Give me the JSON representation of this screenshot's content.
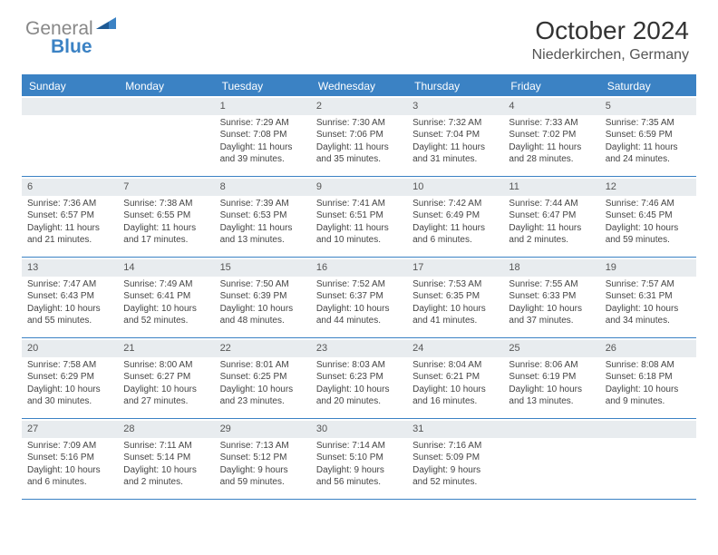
{
  "logo": {
    "part1": "General",
    "part2": "Blue",
    "part1_color": "#888888",
    "part2_color": "#3b82c4"
  },
  "header": {
    "title": "October 2024",
    "location": "Niederkirchen, Germany"
  },
  "colors": {
    "accent": "#3b82c4",
    "header_bg": "#3b82c4",
    "header_text": "#ffffff",
    "daynum_bg": "#e8ecef",
    "text": "#333333"
  },
  "day_names": [
    "Sunday",
    "Monday",
    "Tuesday",
    "Wednesday",
    "Thursday",
    "Friday",
    "Saturday"
  ],
  "weeks": [
    [
      {
        "num": "",
        "empty": true
      },
      {
        "num": "",
        "empty": true
      },
      {
        "num": "1",
        "sunrise": "Sunrise: 7:29 AM",
        "sunset": "Sunset: 7:08 PM",
        "daylight": "Daylight: 11 hours and 39 minutes."
      },
      {
        "num": "2",
        "sunrise": "Sunrise: 7:30 AM",
        "sunset": "Sunset: 7:06 PM",
        "daylight": "Daylight: 11 hours and 35 minutes."
      },
      {
        "num": "3",
        "sunrise": "Sunrise: 7:32 AM",
        "sunset": "Sunset: 7:04 PM",
        "daylight": "Daylight: 11 hours and 31 minutes."
      },
      {
        "num": "4",
        "sunrise": "Sunrise: 7:33 AM",
        "sunset": "Sunset: 7:02 PM",
        "daylight": "Daylight: 11 hours and 28 minutes."
      },
      {
        "num": "5",
        "sunrise": "Sunrise: 7:35 AM",
        "sunset": "Sunset: 6:59 PM",
        "daylight": "Daylight: 11 hours and 24 minutes."
      }
    ],
    [
      {
        "num": "6",
        "sunrise": "Sunrise: 7:36 AM",
        "sunset": "Sunset: 6:57 PM",
        "daylight": "Daylight: 11 hours and 21 minutes."
      },
      {
        "num": "7",
        "sunrise": "Sunrise: 7:38 AM",
        "sunset": "Sunset: 6:55 PM",
        "daylight": "Daylight: 11 hours and 17 minutes."
      },
      {
        "num": "8",
        "sunrise": "Sunrise: 7:39 AM",
        "sunset": "Sunset: 6:53 PM",
        "daylight": "Daylight: 11 hours and 13 minutes."
      },
      {
        "num": "9",
        "sunrise": "Sunrise: 7:41 AM",
        "sunset": "Sunset: 6:51 PM",
        "daylight": "Daylight: 11 hours and 10 minutes."
      },
      {
        "num": "10",
        "sunrise": "Sunrise: 7:42 AM",
        "sunset": "Sunset: 6:49 PM",
        "daylight": "Daylight: 11 hours and 6 minutes."
      },
      {
        "num": "11",
        "sunrise": "Sunrise: 7:44 AM",
        "sunset": "Sunset: 6:47 PM",
        "daylight": "Daylight: 11 hours and 2 minutes."
      },
      {
        "num": "12",
        "sunrise": "Sunrise: 7:46 AM",
        "sunset": "Sunset: 6:45 PM",
        "daylight": "Daylight: 10 hours and 59 minutes."
      }
    ],
    [
      {
        "num": "13",
        "sunrise": "Sunrise: 7:47 AM",
        "sunset": "Sunset: 6:43 PM",
        "daylight": "Daylight: 10 hours and 55 minutes."
      },
      {
        "num": "14",
        "sunrise": "Sunrise: 7:49 AM",
        "sunset": "Sunset: 6:41 PM",
        "daylight": "Daylight: 10 hours and 52 minutes."
      },
      {
        "num": "15",
        "sunrise": "Sunrise: 7:50 AM",
        "sunset": "Sunset: 6:39 PM",
        "daylight": "Daylight: 10 hours and 48 minutes."
      },
      {
        "num": "16",
        "sunrise": "Sunrise: 7:52 AM",
        "sunset": "Sunset: 6:37 PM",
        "daylight": "Daylight: 10 hours and 44 minutes."
      },
      {
        "num": "17",
        "sunrise": "Sunrise: 7:53 AM",
        "sunset": "Sunset: 6:35 PM",
        "daylight": "Daylight: 10 hours and 41 minutes."
      },
      {
        "num": "18",
        "sunrise": "Sunrise: 7:55 AM",
        "sunset": "Sunset: 6:33 PM",
        "daylight": "Daylight: 10 hours and 37 minutes."
      },
      {
        "num": "19",
        "sunrise": "Sunrise: 7:57 AM",
        "sunset": "Sunset: 6:31 PM",
        "daylight": "Daylight: 10 hours and 34 minutes."
      }
    ],
    [
      {
        "num": "20",
        "sunrise": "Sunrise: 7:58 AM",
        "sunset": "Sunset: 6:29 PM",
        "daylight": "Daylight: 10 hours and 30 minutes."
      },
      {
        "num": "21",
        "sunrise": "Sunrise: 8:00 AM",
        "sunset": "Sunset: 6:27 PM",
        "daylight": "Daylight: 10 hours and 27 minutes."
      },
      {
        "num": "22",
        "sunrise": "Sunrise: 8:01 AM",
        "sunset": "Sunset: 6:25 PM",
        "daylight": "Daylight: 10 hours and 23 minutes."
      },
      {
        "num": "23",
        "sunrise": "Sunrise: 8:03 AM",
        "sunset": "Sunset: 6:23 PM",
        "daylight": "Daylight: 10 hours and 20 minutes."
      },
      {
        "num": "24",
        "sunrise": "Sunrise: 8:04 AM",
        "sunset": "Sunset: 6:21 PM",
        "daylight": "Daylight: 10 hours and 16 minutes."
      },
      {
        "num": "25",
        "sunrise": "Sunrise: 8:06 AM",
        "sunset": "Sunset: 6:19 PM",
        "daylight": "Daylight: 10 hours and 13 minutes."
      },
      {
        "num": "26",
        "sunrise": "Sunrise: 8:08 AM",
        "sunset": "Sunset: 6:18 PM",
        "daylight": "Daylight: 10 hours and 9 minutes."
      }
    ],
    [
      {
        "num": "27",
        "sunrise": "Sunrise: 7:09 AM",
        "sunset": "Sunset: 5:16 PM",
        "daylight": "Daylight: 10 hours and 6 minutes."
      },
      {
        "num": "28",
        "sunrise": "Sunrise: 7:11 AM",
        "sunset": "Sunset: 5:14 PM",
        "daylight": "Daylight: 10 hours and 2 minutes."
      },
      {
        "num": "29",
        "sunrise": "Sunrise: 7:13 AM",
        "sunset": "Sunset: 5:12 PM",
        "daylight": "Daylight: 9 hours and 59 minutes."
      },
      {
        "num": "30",
        "sunrise": "Sunrise: 7:14 AM",
        "sunset": "Sunset: 5:10 PM",
        "daylight": "Daylight: 9 hours and 56 minutes."
      },
      {
        "num": "31",
        "sunrise": "Sunrise: 7:16 AM",
        "sunset": "Sunset: 5:09 PM",
        "daylight": "Daylight: 9 hours and 52 minutes."
      },
      {
        "num": "",
        "empty": true
      },
      {
        "num": "",
        "empty": true
      }
    ]
  ]
}
